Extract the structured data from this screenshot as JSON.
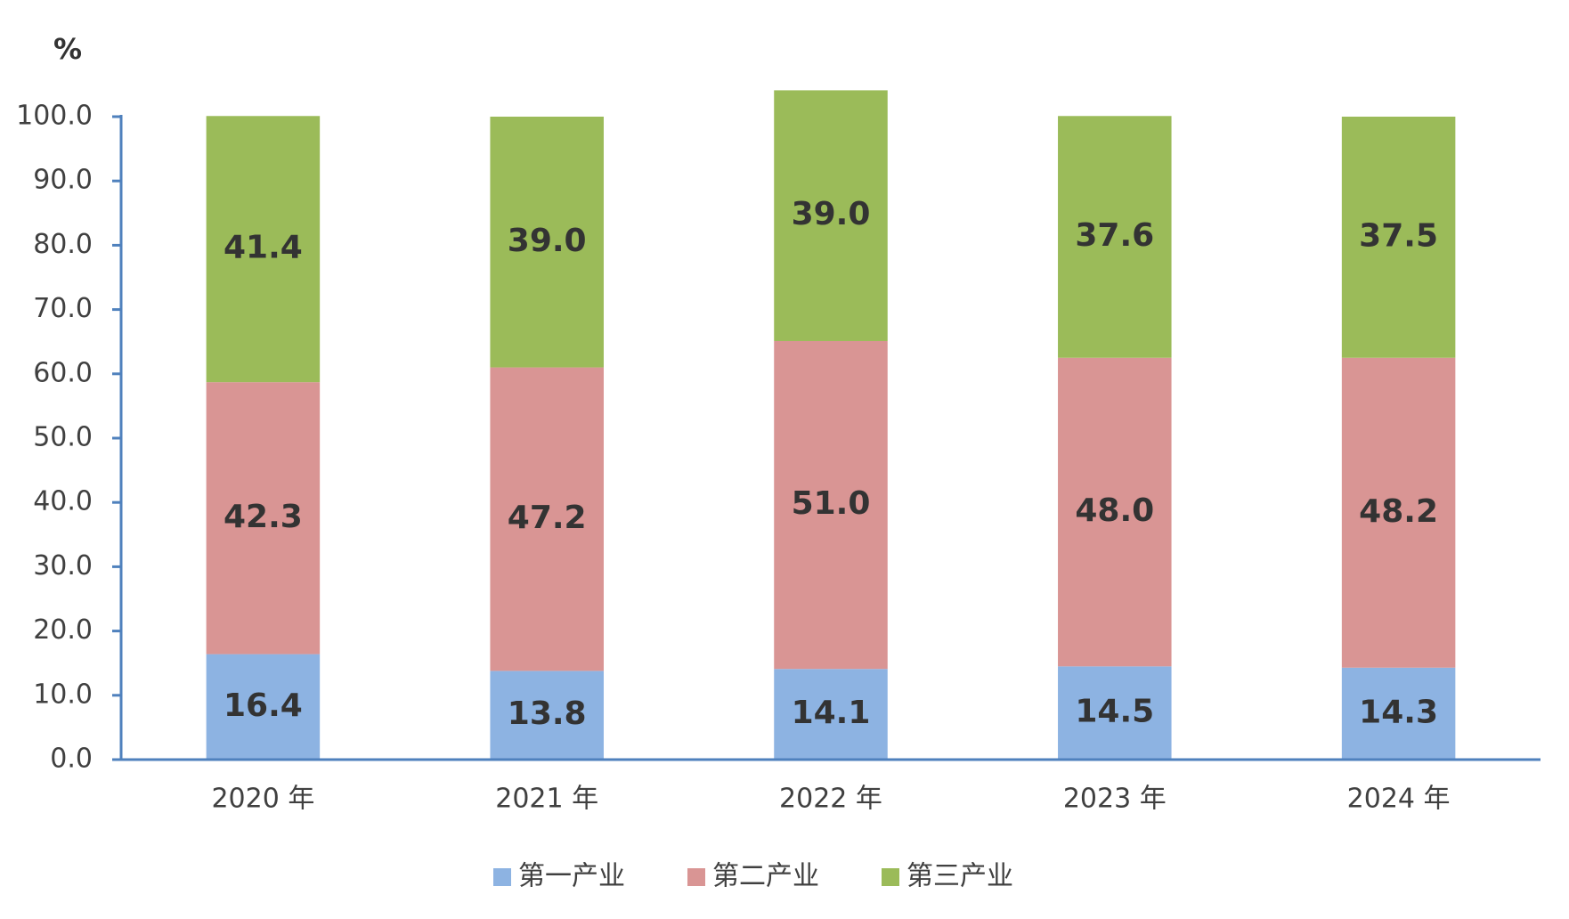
{
  "chart_data": {
    "type": "stacked_bar",
    "y_label": "%",
    "categories": [
      "2020 年",
      "2021 年",
      "2022 年",
      "2023 年",
      "2024 年"
    ],
    "series": [
      {
        "name": "第一产业",
        "color": "#8db3e2",
        "values": [
          16.4,
          13.8,
          14.1,
          14.5,
          14.3
        ],
        "value_labels": [
          "16.4",
          "13.8",
          "14.1",
          "14.5",
          "14.3"
        ]
      },
      {
        "name": "第二产业",
        "color": "#d99594",
        "values": [
          42.3,
          47.2,
          51.0,
          48.0,
          48.2
        ],
        "value_labels": [
          "42.3",
          "47.2",
          "51.0",
          "48.0",
          "48.2"
        ]
      },
      {
        "name": "第三产业",
        "color": "#9bbb59",
        "values": [
          41.4,
          39.0,
          39.0,
          37.6,
          37.5
        ],
        "value_labels": [
          "41.4",
          "39.0",
          "39.0",
          "37.6",
          "37.5"
        ]
      }
    ],
    "ylim": [
      0,
      100
    ],
    "yticks": [
      {
        "value": 0,
        "label": "0.0"
      },
      {
        "value": 10,
        "label": "10.0"
      },
      {
        "value": 20,
        "label": "20.0"
      },
      {
        "value": 30,
        "label": "30.0"
      },
      {
        "value": 40,
        "label": "40.0"
      },
      {
        "value": 50,
        "label": "50.0"
      },
      {
        "value": 60,
        "label": "60.0"
      },
      {
        "value": 70,
        "label": "70.0"
      },
      {
        "value": 80,
        "label": "80.0"
      },
      {
        "value": 90,
        "label": "90.0"
      },
      {
        "value": 100,
        "label": "100.0"
      }
    ],
    "grid": false,
    "legend": "bottom"
  }
}
